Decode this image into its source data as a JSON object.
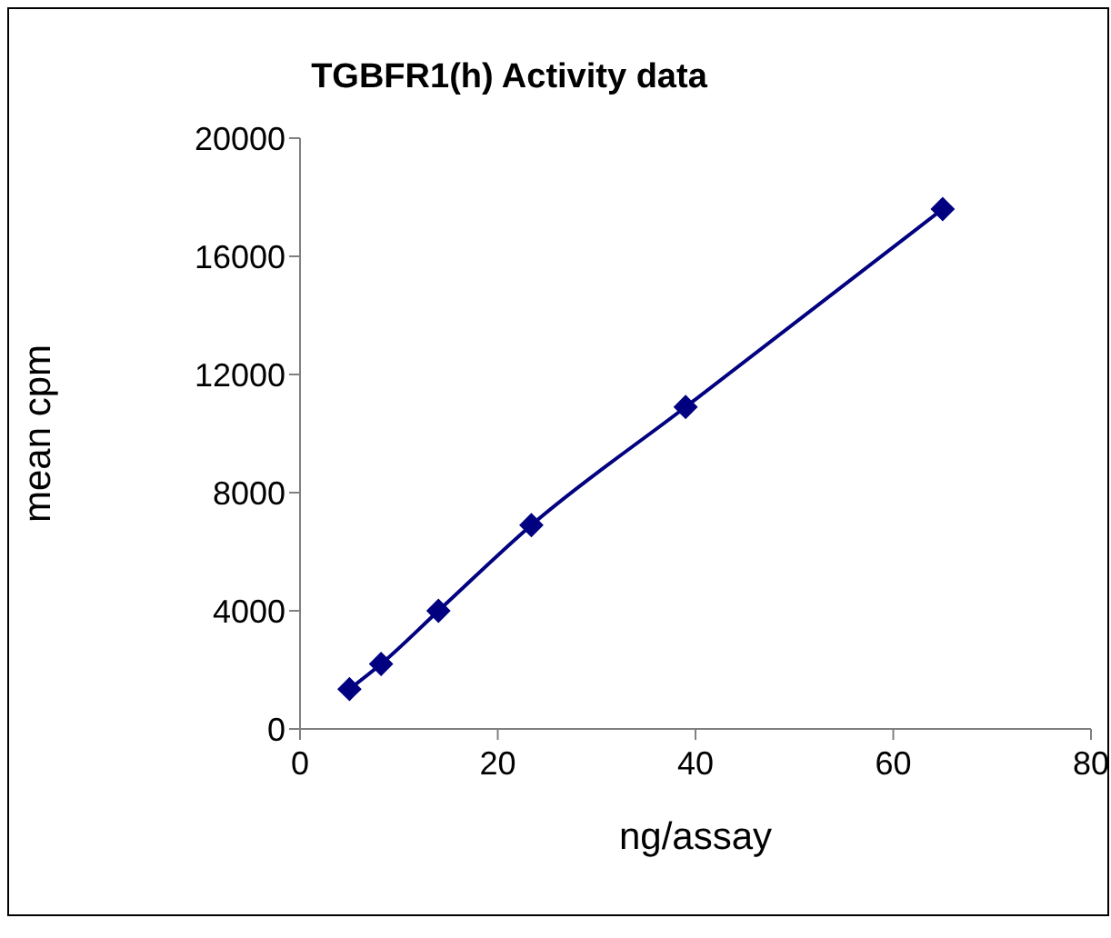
{
  "chart_data": {
    "type": "line",
    "title": "TGBFR1(h) Activity data",
    "xlabel": "ng/assay",
    "ylabel": "mean cpm",
    "x": [
      5,
      8.2,
      14,
      23.4,
      39,
      65
    ],
    "series": [
      {
        "color": "#000080",
        "values": [
          1350,
          2200,
          4000,
          6900,
          10900,
          17600
        ]
      }
    ],
    "xlim": [
      0,
      80
    ],
    "xticks": [
      0,
      20,
      40,
      60,
      80
    ],
    "ylim": [
      0,
      20000
    ],
    "yticks": [
      0,
      4000,
      8000,
      12000,
      16000,
      20000
    ],
    "marker": "diamond",
    "line_style": "solid"
  }
}
